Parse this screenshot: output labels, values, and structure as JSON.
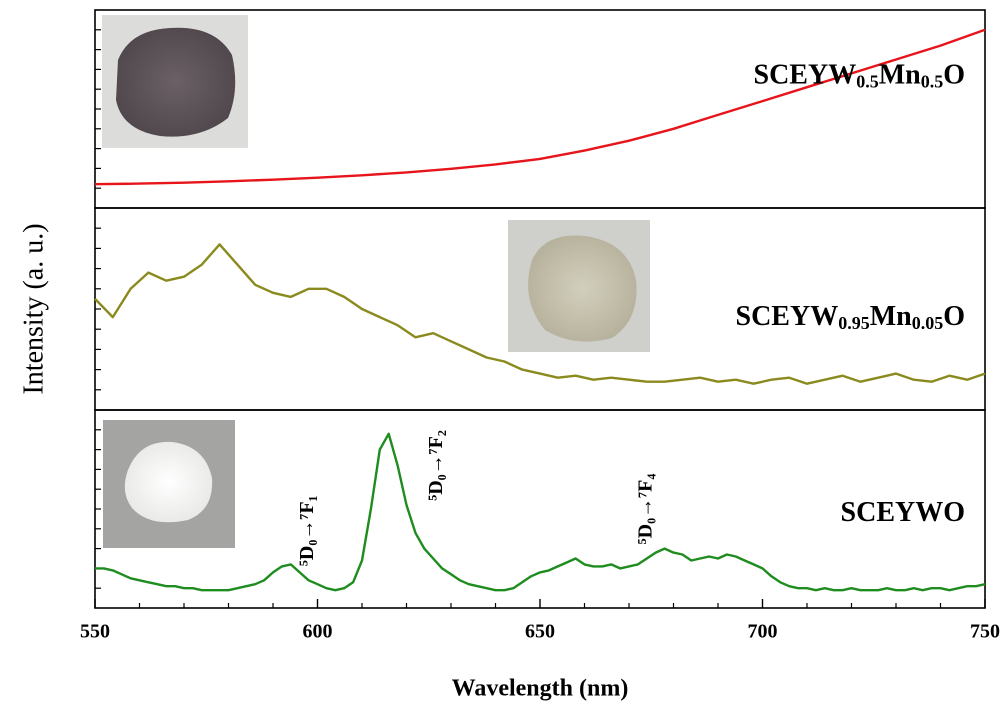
{
  "chart_data": [
    {
      "type": "line",
      "xlim": [
        550,
        750
      ],
      "ylim": [
        0,
        100
      ],
      "yticks": [
        10,
        20,
        30,
        40,
        50,
        60,
        70,
        80,
        90
      ],
      "x": [
        550,
        560,
        570,
        580,
        590,
        600,
        610,
        620,
        630,
        640,
        650,
        660,
        670,
        680,
        690,
        700,
        710,
        720,
        730,
        740,
        750
      ],
      "series": [
        {
          "name": "SCEYW0.5Mn0.5O",
          "color": "#e8141b",
          "values": [
            12,
            12.3,
            12.8,
            13.5,
            14.3,
            15.3,
            16.5,
            18,
            19.8,
            22,
            24.8,
            29,
            34,
            40,
            47,
            54,
            61,
            68,
            75,
            82,
            90
          ]
        }
      ]
    },
    {
      "type": "line",
      "xlim": [
        550,
        750
      ],
      "ylim": [
        0,
        100
      ],
      "yticks": [
        10,
        20,
        30,
        40,
        50,
        60,
        70,
        80,
        90
      ],
      "ylabel": "Intensity (a. u.)",
      "x": [
        550,
        554,
        558,
        562,
        566,
        570,
        574,
        578,
        582,
        586,
        590,
        594,
        598,
        602,
        606,
        610,
        614,
        618,
        622,
        626,
        630,
        634,
        638,
        642,
        646,
        650,
        654,
        658,
        662,
        666,
        670,
        674,
        678,
        682,
        686,
        690,
        694,
        698,
        702,
        706,
        710,
        714,
        718,
        722,
        726,
        730,
        734,
        738,
        742,
        746,
        750
      ],
      "series": [
        {
          "name": "SCEYW0.95Mn0.05O",
          "color": "#8a8a1e",
          "values": [
            55,
            46,
            60,
            68,
            64,
            66,
            72,
            82,
            72,
            62,
            58,
            56,
            60,
            60,
            56,
            50,
            46,
            42,
            36,
            38,
            34,
            30,
            26,
            24,
            20,
            18,
            16,
            17,
            15,
            16,
            15,
            14,
            14,
            15,
            16,
            14,
            15,
            13,
            15,
            16,
            13,
            15,
            17,
            14,
            16,
            18,
            15,
            14,
            17,
            15,
            18
          ]
        }
      ]
    },
    {
      "type": "line",
      "xlim": [
        550,
        750
      ],
      "ylim": [
        0,
        100
      ],
      "yticks": [
        10,
        20,
        30,
        40,
        50,
        60,
        70,
        80,
        90
      ],
      "xticks": [
        550,
        600,
        650,
        700,
        750
      ],
      "xminorticks": [
        560,
        570,
        580,
        590,
        610,
        620,
        630,
        640,
        660,
        670,
        680,
        690,
        710,
        720,
        730,
        740
      ],
      "xlabel": "Wavelength (nm)",
      "x": [
        550,
        552,
        554,
        556,
        558,
        560,
        562,
        564,
        566,
        568,
        570,
        572,
        574,
        576,
        578,
        580,
        582,
        584,
        586,
        588,
        590,
        592,
        594,
        596,
        598,
        600,
        602,
        604,
        606,
        608,
        610,
        612,
        614,
        616,
        618,
        620,
        622,
        624,
        626,
        628,
        630,
        632,
        634,
        636,
        638,
        640,
        642,
        644,
        646,
        648,
        650,
        652,
        654,
        656,
        658,
        660,
        662,
        664,
        666,
        668,
        670,
        672,
        674,
        676,
        678,
        680,
        682,
        684,
        686,
        688,
        690,
        692,
        694,
        696,
        698,
        700,
        702,
        704,
        706,
        708,
        710,
        712,
        714,
        716,
        718,
        720,
        722,
        724,
        726,
        728,
        730,
        732,
        734,
        736,
        738,
        740,
        742,
        744,
        746,
        748,
        750
      ],
      "series": [
        {
          "name": "SCEYWO",
          "color": "#1e8c1e",
          "values": [
            20,
            20,
            19,
            17,
            15,
            14,
            13,
            12,
            11,
            11,
            10,
            10,
            9,
            9,
            9,
            9,
            10,
            11,
            12,
            14,
            18,
            21,
            22,
            18,
            14,
            12,
            10,
            9,
            10,
            13,
            24,
            50,
            80,
            88,
            72,
            52,
            38,
            30,
            25,
            20,
            17,
            14,
            12,
            11,
            10,
            9,
            9,
            10,
            13,
            16,
            18,
            19,
            21,
            23,
            25,
            22,
            21,
            21,
            22,
            20,
            21,
            22,
            25,
            28,
            30,
            28,
            27,
            24,
            25,
            26,
            25,
            27,
            26,
            24,
            22,
            20,
            16,
            13,
            11,
            10,
            10,
            9,
            10,
            9,
            9,
            10,
            9,
            9,
            9,
            10,
            9,
            9,
            10,
            9,
            10,
            10,
            9,
            10,
            11,
            11,
            12
          ]
        }
      ],
      "annotations": [
        {
          "text": "⁵D₀→⁷F₁",
          "x": 598,
          "y": 39
        },
        {
          "text": "⁵D₀→⁷F₂",
          "x": 627,
          "y": 72
        },
        {
          "text": "⁵D₀→⁷F₄",
          "x": 674,
          "y": 50
        }
      ]
    }
  ]
}
